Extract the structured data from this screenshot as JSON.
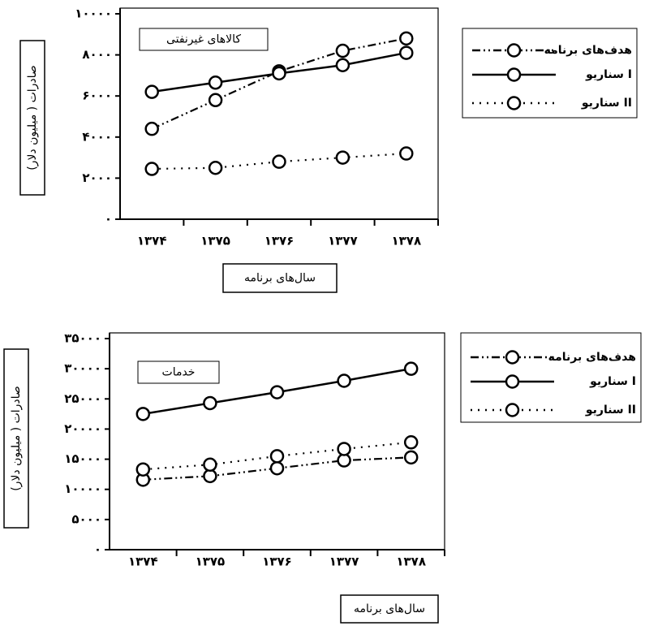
{
  "chart_data": [
    {
      "type": "line",
      "title": "کالاهای غیرنفتی",
      "y_label": "صادرات ( میلیون دلار)",
      "x_label": "سال‌های برنامه",
      "categories": [
        "۱۳۷۴",
        "۱۳۷۵",
        "۱۳۷۶",
        "۱۳۷۷",
        "۱۳۷۸"
      ],
      "ylim": [
        0,
        10000
      ],
      "yticks": [
        {
          "value": 0,
          "label": "۰"
        },
        {
          "value": 2000,
          "label": "۲۰۰۰"
        },
        {
          "value": 4000,
          "label": "۴۰۰۰"
        },
        {
          "value": 6000,
          "label": "۶۰۰۰"
        },
        {
          "value": 8000,
          "label": "۸۰۰۰"
        },
        {
          "value": 10000,
          "label": "۱۰۰۰۰"
        }
      ],
      "legend": "right",
      "series": [
        {
          "name": "هدف‌های برنامه",
          "color": "#000000",
          "style": "dashdot",
          "values": [
            4400,
            5800,
            7200,
            8200,
            8800
          ]
        },
        {
          "name": "سناریو I",
          "color": "#000000",
          "style": "solid",
          "values": [
            6200,
            6650,
            7100,
            7500,
            8100
          ]
        },
        {
          "name": "سناریو II",
          "color": "#000000",
          "style": "dotted",
          "values": [
            2450,
            2500,
            2800,
            3000,
            3200
          ]
        }
      ]
    },
    {
      "type": "line",
      "title": "خدمات",
      "y_label": "صادرات ( میلیون دلار)",
      "x_label": "سال‌های برنامه",
      "categories": [
        "۱۳۷۴",
        "۱۳۷۵",
        "۱۳۷۶",
        "۱۳۷۷",
        "۱۳۷۸"
      ],
      "ylim": [
        0,
        35000
      ],
      "yticks": [
        {
          "value": 0,
          "label": "۰"
        },
        {
          "value": 5000,
          "label": "۵۰۰۰"
        },
        {
          "value": 10000,
          "label": "۱۰۰۰۰"
        },
        {
          "value": 15000,
          "label": "۱۵۰۰۰"
        },
        {
          "value": 20000,
          "label": "۲۰۰۰۰"
        },
        {
          "value": 25000,
          "label": "۲۵۰۰۰"
        },
        {
          "value": 30000,
          "label": "۳۰۰۰۰"
        },
        {
          "value": 35000,
          "label": "۳۵۰۰۰"
        }
      ],
      "legend": "right",
      "series": [
        {
          "name": "هدف‌های برنامه",
          "color": "#000000",
          "style": "dashdot",
          "values": [
            11600,
            12200,
            13500,
            14800,
            15300
          ]
        },
        {
          "name": "سناریو I",
          "color": "#000000",
          "style": "solid",
          "values": [
            22500,
            24300,
            26100,
            28000,
            30000
          ]
        },
        {
          "name": "سناریو II",
          "color": "#000000",
          "style": "dotted",
          "values": [
            13300,
            14100,
            15500,
            16700,
            17800
          ]
        }
      ]
    }
  ]
}
